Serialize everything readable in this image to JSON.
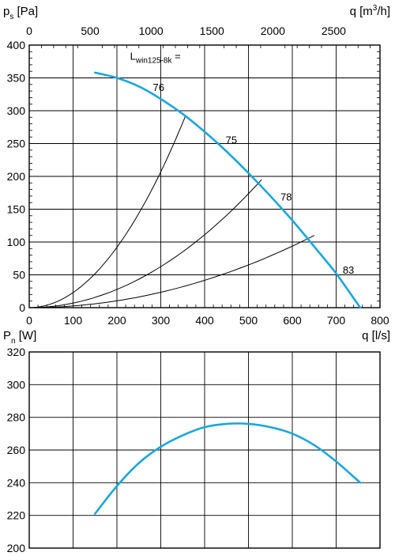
{
  "chart_data": [
    {
      "type": "line",
      "name": "pressure",
      "xlabel": "q [l/s]",
      "ylabel": "ps [Pa]",
      "ylabel_main": "p",
      "ylabel_sub": "s",
      "ylabel_unit": " [Pa]",
      "x2label": "q [m3/h]",
      "x2label_main": "q [m",
      "x2label_sup": "3",
      "x2label_end": "/h]",
      "xlim": [
        0,
        800
      ],
      "ylim": [
        0,
        400
      ],
      "x2lim": [
        0,
        2880
      ],
      "xticks": [
        0,
        100,
        200,
        300,
        400,
        500,
        600,
        700,
        800
      ],
      "yticks": [
        0,
        50,
        100,
        150,
        200,
        250,
        300,
        350,
        400
      ],
      "x2ticks": [
        0,
        500,
        1000,
        1500,
        2000,
        2500
      ],
      "grid": true,
      "fan_curve": {
        "x": [
          150,
          200,
          250,
          300,
          350,
          400,
          450,
          500,
          550,
          600,
          650,
          700,
          755
        ],
        "y": [
          358,
          350,
          337,
          318,
          295,
          268,
          238,
          205,
          170,
          133,
          93,
          52,
          0
        ]
      },
      "system_curves": [
        {
          "label": "76",
          "q_end": 357,
          "p_end": 293
        },
        {
          "label": "75",
          "q_end": 530,
          "p_end": 195
        },
        {
          "label": "78",
          "q_end": 650,
          "p_end": 110
        }
      ],
      "annotations": [
        {
          "text": "76",
          "x": 282,
          "y": 330
        },
        {
          "text": "75",
          "x": 448,
          "y": 250
        },
        {
          "text": "78",
          "x": 573,
          "y": 163
        },
        {
          "text": "83",
          "x": 715,
          "y": 52
        }
      ],
      "sound_label": {
        "main": "L",
        "sub": "win125-8k",
        "end": " =",
        "x": 230,
        "y": 378
      }
    },
    {
      "type": "line",
      "name": "power",
      "xlabel": "q [l/s]",
      "ylabel": "Pn [W]",
      "ylabel_main": "P",
      "ylabel_sub": "n",
      "ylabel_unit": " [W]",
      "xlim": [
        0,
        800
      ],
      "ylim": [
        200,
        320
      ],
      "yticks": [
        200,
        220,
        240,
        260,
        280,
        300,
        320
      ],
      "grid": true,
      "power_curve": {
        "x": [
          150,
          200,
          250,
          300,
          350,
          400,
          450,
          500,
          550,
          600,
          650,
          700,
          755
        ],
        "y": [
          221,
          238,
          252,
          262,
          269,
          274,
          276,
          276,
          274,
          270,
          263,
          253,
          240
        ]
      }
    }
  ]
}
